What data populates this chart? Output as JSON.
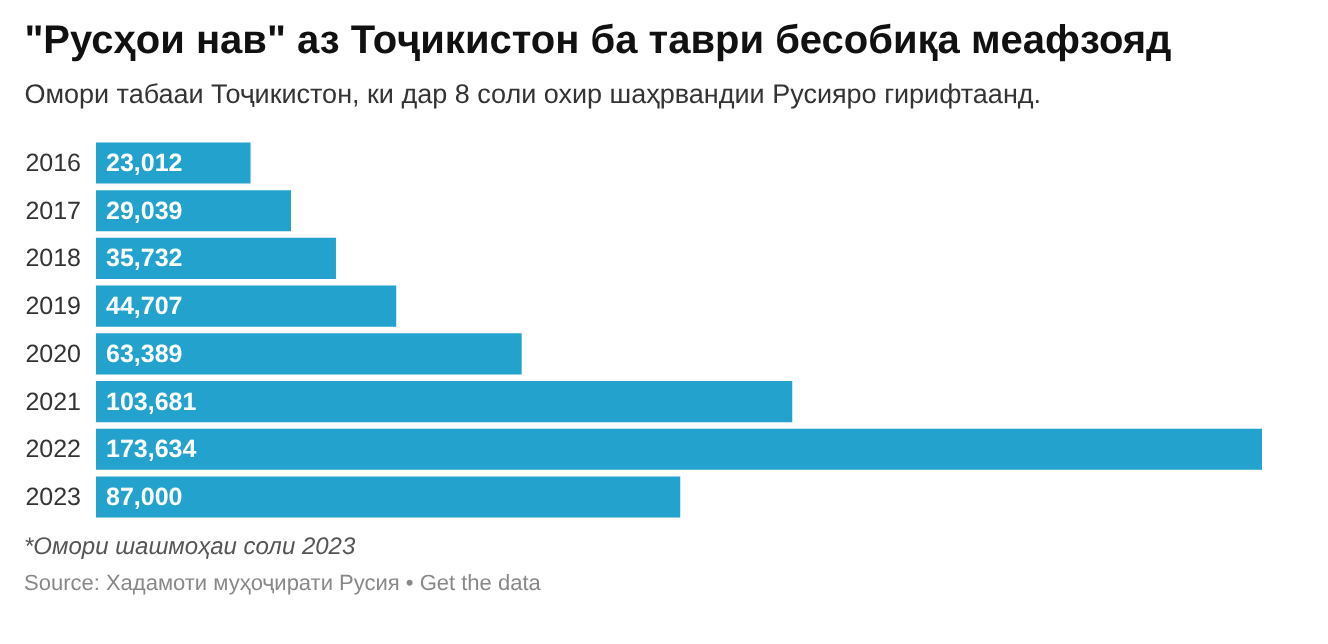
{
  "chart_data": {
    "type": "bar",
    "orientation": "horizontal",
    "title": "\"Русҳои нав\" аз Тоҷикистон ба таври бесобиқа меафзояд",
    "subtitle": "Омори табааи Тоҷикистон, ки дар 8 соли охир шаҳрвандии Русияро гирифтаанд.",
    "categories": [
      "2016",
      "2017",
      "2018",
      "2019",
      "2020",
      "2021",
      "2022",
      "2023"
    ],
    "values": [
      23012,
      29039,
      35732,
      44707,
      63389,
      103681,
      173634,
      87000
    ],
    "color": "#22a2cc",
    "value_labels": [
      "23,012",
      "29,039",
      "35,732",
      "44,707",
      "63,389",
      "103,681",
      "173,634",
      "87,000"
    ],
    "annotations": [
      "*Омори шашмоҳаи соли 2023",
      "Source: Хадамоти муҳоҷирати Русия • Get the data"
    ]
  }
}
